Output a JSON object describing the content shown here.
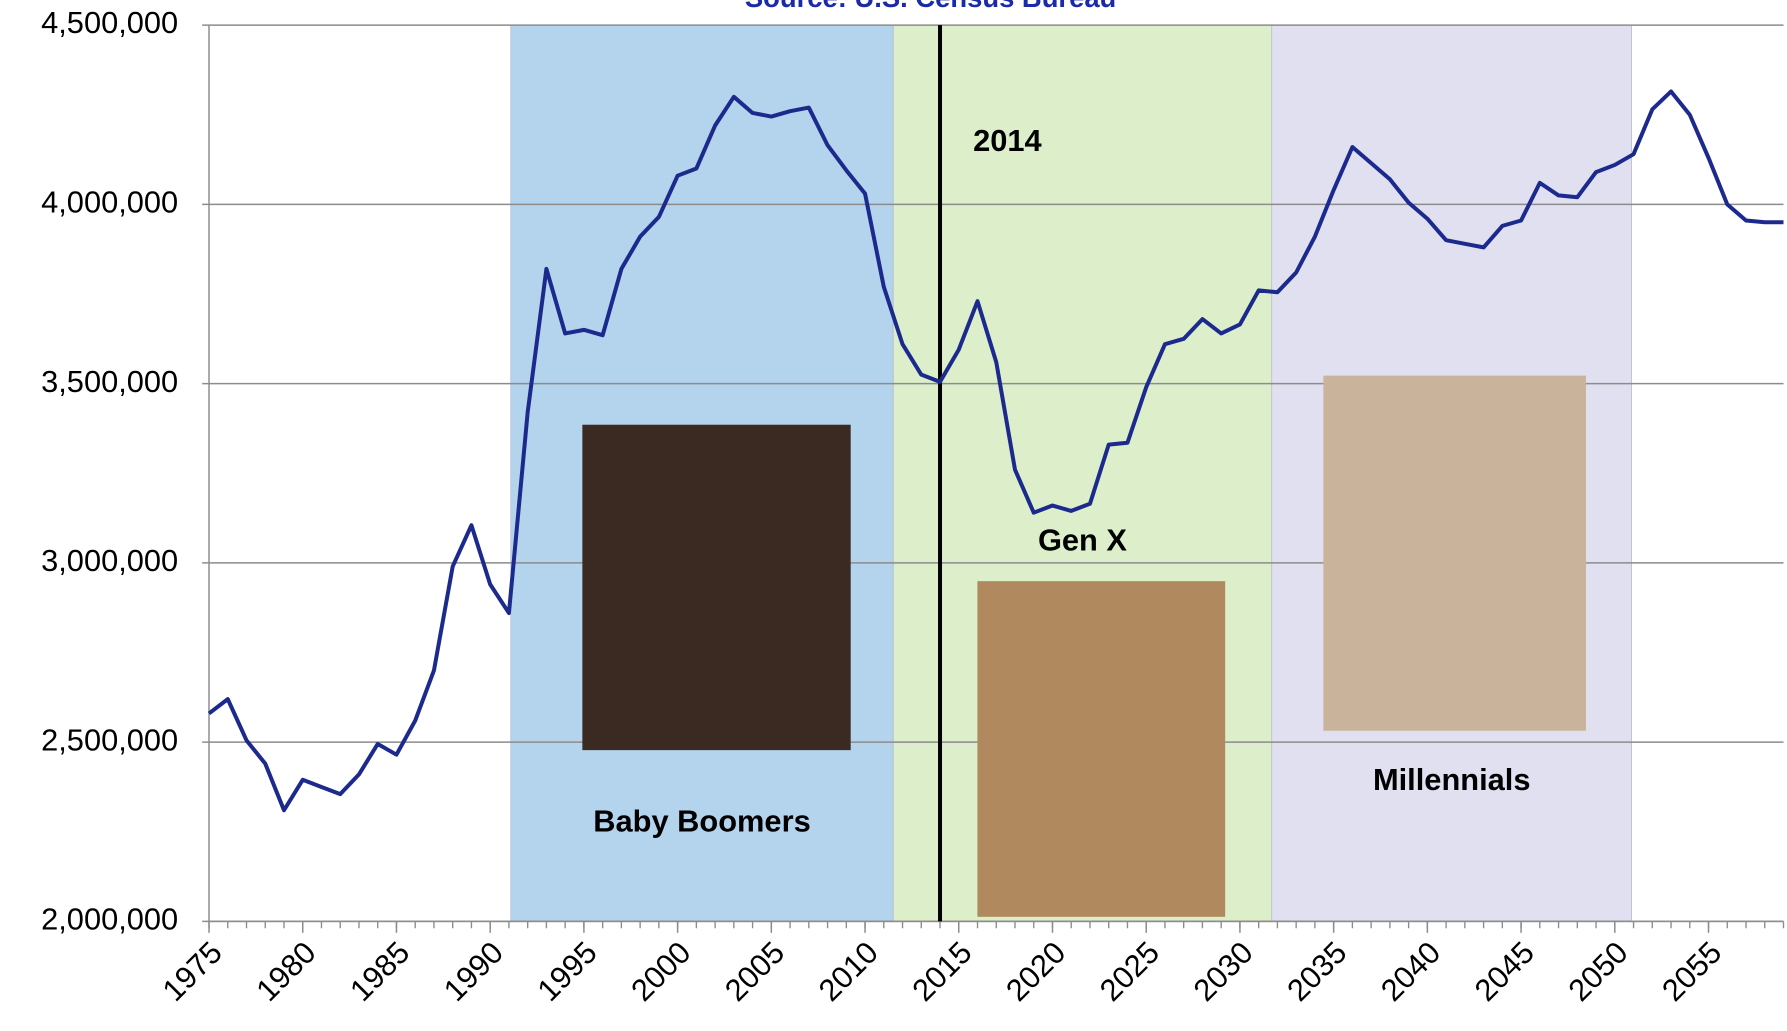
{
  "chart_data": {
    "type": "line",
    "subtitle": "Source: U.S. Census Bureau",
    "x": [
      1975,
      1976,
      1977,
      1978,
      1979,
      1980,
      1981,
      1982,
      1983,
      1984,
      1985,
      1986,
      1987,
      1988,
      1989,
      1990,
      1991,
      1992,
      1993,
      1994,
      1995,
      1996,
      1997,
      1998,
      1999,
      2000,
      2001,
      2002,
      2003,
      2004,
      2005,
      2006,
      2007,
      2008,
      2009,
      2010,
      2011,
      2012,
      2013,
      2014,
      2015,
      2016,
      2017,
      2018,
      2019,
      2020,
      2021,
      2022,
      2023,
      2024,
      2025,
      2026,
      2027,
      2028,
      2029,
      2030,
      2031,
      2032,
      2033,
      2034,
      2035,
      2036,
      2037,
      2038,
      2039,
      2040,
      2041,
      2042,
      2043,
      2044,
      2045,
      2046,
      2047,
      2048,
      2049,
      2050,
      2051,
      2052,
      2053,
      2054,
      2055,
      2056,
      2057,
      2058,
      2059
    ],
    "values": [
      2580000,
      2620000,
      2505000,
      2440000,
      2310000,
      2395000,
      2375000,
      2355000,
      2410000,
      2495000,
      2465000,
      2560000,
      2700000,
      2990000,
      3105000,
      2940000,
      2860000,
      3420000,
      3820000,
      3640000,
      3650000,
      3635000,
      3820000,
      3910000,
      3965000,
      4080000,
      4100000,
      4220000,
      4300000,
      4255000,
      4245000,
      4260000,
      4270000,
      4165000,
      4095000,
      4030000,
      3770000,
      3610000,
      3525000,
      3505000,
      3595000,
      3730000,
      3560000,
      3260000,
      3140000,
      3160000,
      3145000,
      3165000,
      3330000,
      3335000,
      3490000,
      3610000,
      3625000,
      3680000,
      3640000,
      3665000,
      3760000,
      3755000,
      3810000,
      3910000,
      4040000,
      4160000,
      4115000,
      4070000,
      4005000,
      3960000,
      3900000,
      3890000,
      3880000,
      3940000,
      3955000,
      4060000,
      4025000,
      4020000,
      4090000,
      4110000,
      4140000,
      4265000,
      4315000,
      4250000,
      4130000,
      4000000,
      3955000,
      3950000,
      3950000
    ],
    "color": "#1b2a8c",
    "xlim": [
      1975,
      2059
    ],
    "xticks": [
      1975,
      1980,
      1985,
      1990,
      1995,
      2000,
      2005,
      2010,
      2015,
      2020,
      2025,
      2030,
      2035,
      2040,
      2045,
      2050,
      2055
    ],
    "ylim": [
      2000000,
      4500000
    ],
    "yticks": [
      {
        "value": 2000000,
        "label": "2,000,000"
      },
      {
        "value": 2500000,
        "label": "2,500,000"
      },
      {
        "value": 3000000,
        "label": "3,000,000"
      },
      {
        "value": 3500000,
        "label": "3,500,000"
      },
      {
        "value": 4000000,
        "label": "4,000,000"
      },
      {
        "value": 4500000,
        "label": "4,500,000"
      }
    ],
    "grid": true,
    "bands": [
      {
        "label": "Baby Boomers",
        "start": 1991.1,
        "end": 2011.5,
        "color": "#b4d3ec"
      },
      {
        "label": "Gen X",
        "start": 2011.5,
        "end": 2031.7,
        "color": "#dcefca"
      },
      {
        "label": "Millennials",
        "start": 2031.7,
        "end": 2050.9,
        "color": "#e0e0f0"
      }
    ],
    "marker": {
      "x": 2014,
      "label": "2014"
    }
  }
}
